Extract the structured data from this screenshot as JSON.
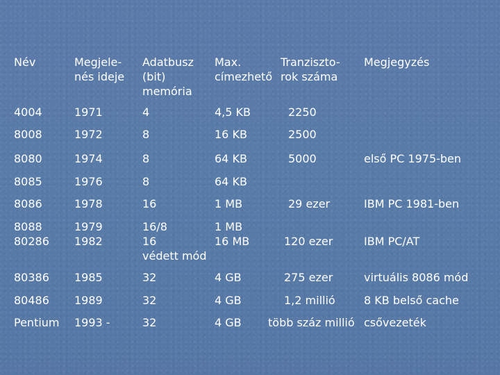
{
  "table": {
    "headers": {
      "nev": "Név",
      "megjelenes_1": "Megjele-",
      "megjelenes_2": "nés ideje",
      "adatbusz_1": "Adatbusz",
      "adatbusz_2": "(bit)",
      "adatbusz_3": "memória",
      "max_1": "Max.",
      "max_2": "címezhető",
      "tranz_1": "Tranziszto-",
      "tranz_2": "rok száma",
      "megjegyzes": "Megjegyzés"
    },
    "rows": [
      {
        "nev": "4004",
        "ev": "1971",
        "busz": "4",
        "mem": "4,5 KB",
        "tranz": "2250",
        "megj": ""
      },
      {
        "nev": "8008",
        "ev": "1972",
        "busz": "8",
        "mem": "16 KB",
        "tranz": "2500",
        "megj": ""
      },
      {
        "nev": "8080",
        "ev": "1974",
        "busz": "8",
        "mem": "64 KB",
        "tranz": "5000",
        "megj": "első PC 1975-ben"
      },
      {
        "nev": "8085",
        "ev": "1976",
        "busz": "8",
        "mem": "64 KB",
        "tranz": "",
        "megj": ""
      },
      {
        "nev": "8086",
        "ev": "1978",
        "busz": "16",
        "mem": "1 MB",
        "tranz": "29 ezer",
        "megj": "IBM PC 1981-ben"
      },
      {
        "nev": "8088",
        "nev2": "80286",
        "ev": "1979",
        "ev2": "1982",
        "busz": "16/8",
        "busz2": "16",
        "busz3": "védett mód",
        "mem": "1 MB",
        "mem2": "16 MB",
        "tranz": "120 ezer",
        "megj": "IBM PC/AT"
      },
      {
        "nev": "80386",
        "ev": "1985",
        "busz": "32",
        "mem": "4 GB",
        "tranz": "275 ezer",
        "megj": "virtuális 8086 mód"
      },
      {
        "nev": "80486",
        "ev": "1989",
        "busz": "32",
        "mem": "4 GB",
        "tranz": "1,2 millió",
        "megj": "8 KB belső cache"
      },
      {
        "nev": "Pentium",
        "ev": "1993 -",
        "busz": "32",
        "mem": "4 GB",
        "tranz": "több száz millió",
        "megj": "csővezeték"
      }
    ]
  }
}
